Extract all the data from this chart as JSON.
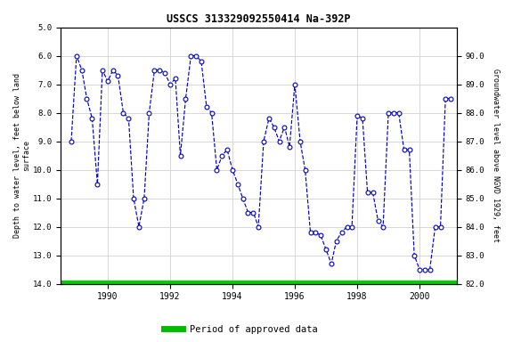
{
  "title": "USSCS 313329092550414 Na-392P",
  "ylabel_left": "Depth to water level, feet below land\nsurface",
  "ylabel_right": "Groundwater level above NGVD 1929, feet",
  "ylim_left": [
    5.0,
    14.0
  ],
  "ylim_right": [
    82.0,
    91.0
  ],
  "yticks_left": [
    5.0,
    6.0,
    7.0,
    8.0,
    9.0,
    10.0,
    11.0,
    12.0,
    13.0,
    14.0
  ],
  "yticks_right": [
    82.0,
    83.0,
    84.0,
    85.0,
    86.0,
    87.0,
    88.0,
    89.0,
    90.0
  ],
  "xlim": [
    1988.5,
    2001.2
  ],
  "xticks": [
    1990,
    1992,
    1994,
    1996,
    1998,
    2000
  ],
  "background_color": "#ffffff",
  "line_color": "#0000cc",
  "marker_facecolor": "#ffffff",
  "marker_edgecolor": "#0000cc",
  "grid_color": "#c8c8c8",
  "legend_line_color": "#00bb00",
  "legend_label": "Period of approved data",
  "approved_bar_color": "#00cc00",
  "data_x": [
    1988.83,
    1989.0,
    1989.17,
    1989.33,
    1989.5,
    1989.67,
    1989.83,
    1990.0,
    1990.17,
    1990.33,
    1990.5,
    1990.67,
    1990.83,
    1991.0,
    1991.17,
    1991.33,
    1991.5,
    1991.67,
    1991.83,
    1992.0,
    1992.17,
    1992.33,
    1992.5,
    1992.67,
    1992.83,
    1993.0,
    1993.17,
    1993.33,
    1993.5,
    1993.67,
    1993.83,
    1994.0,
    1994.17,
    1994.33,
    1994.5,
    1994.67,
    1994.83,
    1995.0,
    1995.17,
    1995.33,
    1995.5,
    1995.67,
    1995.83,
    1996.0,
    1996.17,
    1996.33,
    1996.5,
    1996.67,
    1996.83,
    1997.0,
    1997.17,
    1997.33,
    1997.5,
    1997.67,
    1997.83,
    1998.0,
    1998.17,
    1998.33,
    1998.5,
    1998.67,
    1998.83,
    1999.0,
    1999.17,
    1999.33,
    1999.5,
    1999.67,
    1999.83,
    2000.0,
    2000.17,
    2000.33,
    2000.5,
    2000.67,
    2000.83,
    2001.0
  ],
  "data_y": [
    9.0,
    6.0,
    6.5,
    7.5,
    8.2,
    10.5,
    6.5,
    6.9,
    6.5,
    6.7,
    8.0,
    8.2,
    11.0,
    12.0,
    11.0,
    8.0,
    6.5,
    6.5,
    6.6,
    7.0,
    6.8,
    9.5,
    7.5,
    6.0,
    6.0,
    6.2,
    7.8,
    8.0,
    10.0,
    9.5,
    9.3,
    10.0,
    10.5,
    11.0,
    11.5,
    11.5,
    12.0,
    9.0,
    8.2,
    8.5,
    9.0,
    8.5,
    9.2,
    7.0,
    9.0,
    10.0,
    12.2,
    12.2,
    12.3,
    12.8,
    13.3,
    12.5,
    12.2,
    12.0,
    12.0,
    8.1,
    8.2,
    10.8,
    10.8,
    11.8,
    12.0,
    8.0,
    8.0,
    8.0,
    9.3,
    9.3,
    13.0,
    13.5,
    13.5,
    13.5,
    12.0,
    12.0,
    7.5,
    7.5
  ]
}
